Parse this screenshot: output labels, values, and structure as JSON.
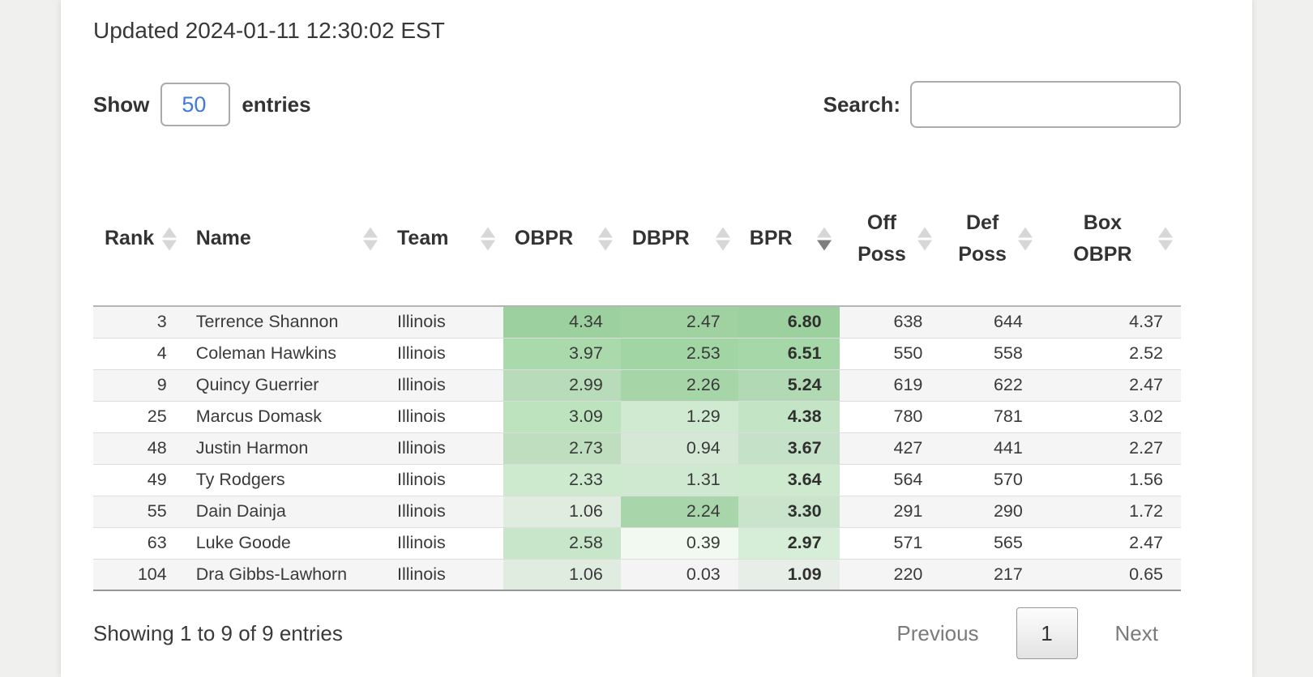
{
  "header": {
    "updated": "Updated 2024-01-11 12:30:02 EST"
  },
  "controls": {
    "show_label": "Show",
    "entries_value": "50",
    "entries_label": "entries",
    "search_label": "Search:",
    "search_value": ""
  },
  "table": {
    "columns": [
      {
        "label": "Rank",
        "align": "right",
        "sort": "none",
        "heat": false,
        "wrap": false,
        "bold": false
      },
      {
        "label": "Name",
        "align": "left",
        "sort": "none",
        "heat": false,
        "wrap": false,
        "bold": false
      },
      {
        "label": "Team",
        "align": "left",
        "sort": "none",
        "heat": false,
        "wrap": false,
        "bold": false
      },
      {
        "label": "OBPR",
        "align": "right",
        "sort": "none",
        "heat": true,
        "wrap": false,
        "bold": false
      },
      {
        "label": "DBPR",
        "align": "right",
        "sort": "none",
        "heat": true,
        "wrap": false,
        "bold": false
      },
      {
        "label": "BPR",
        "align": "right",
        "sort": "desc",
        "heat": true,
        "wrap": false,
        "bold": true
      },
      {
        "label": "Off Poss",
        "align": "right",
        "sort": "none",
        "heat": false,
        "wrap": true,
        "bold": false
      },
      {
        "label": "Def Poss",
        "align": "right",
        "sort": "none",
        "heat": false,
        "wrap": true,
        "bold": false
      },
      {
        "label": "Box OBPR",
        "align": "right",
        "sort": "none",
        "heat": false,
        "wrap": true,
        "bold": false
      }
    ],
    "rows": [
      [
        "3",
        "Terrence Shannon",
        "Illinois",
        "4.34",
        "2.47",
        "6.80",
        "638",
        "644",
        "4.37"
      ],
      [
        "4",
        "Coleman Hawkins",
        "Illinois",
        "3.97",
        "2.53",
        "6.51",
        "550",
        "558",
        "2.52"
      ],
      [
        "9",
        "Quincy Guerrier",
        "Illinois",
        "2.99",
        "2.26",
        "5.24",
        "619",
        "622",
        "2.47"
      ],
      [
        "25",
        "Marcus Domask",
        "Illinois",
        "3.09",
        "1.29",
        "4.38",
        "780",
        "781",
        "3.02"
      ],
      [
        "48",
        "Justin Harmon",
        "Illinois",
        "2.73",
        "0.94",
        "3.67",
        "427",
        "441",
        "2.27"
      ],
      [
        "49",
        "Ty Rodgers",
        "Illinois",
        "2.33",
        "1.31",
        "3.64",
        "564",
        "570",
        "1.56"
      ],
      [
        "55",
        "Dain Dainja",
        "Illinois",
        "1.06",
        "2.24",
        "3.30",
        "291",
        "290",
        "1.72"
      ],
      [
        "63",
        "Luke Goode",
        "Illinois",
        "2.58",
        "0.39",
        "2.97",
        "571",
        "565",
        "2.47"
      ],
      [
        "104",
        "Dra Gibbs-Lawhorn",
        "Illinois",
        "1.06",
        "0.03",
        "1.09",
        "220",
        "217",
        "0.65"
      ]
    ]
  },
  "footer": {
    "info": "Showing 1 to 9 of 9 entries"
  },
  "pagination": {
    "previous": "Previous",
    "current": "1",
    "next": "Next"
  },
  "colors": {
    "heat_green": "#4caf50",
    "entries_value_blue": "#3d7bd7"
  }
}
